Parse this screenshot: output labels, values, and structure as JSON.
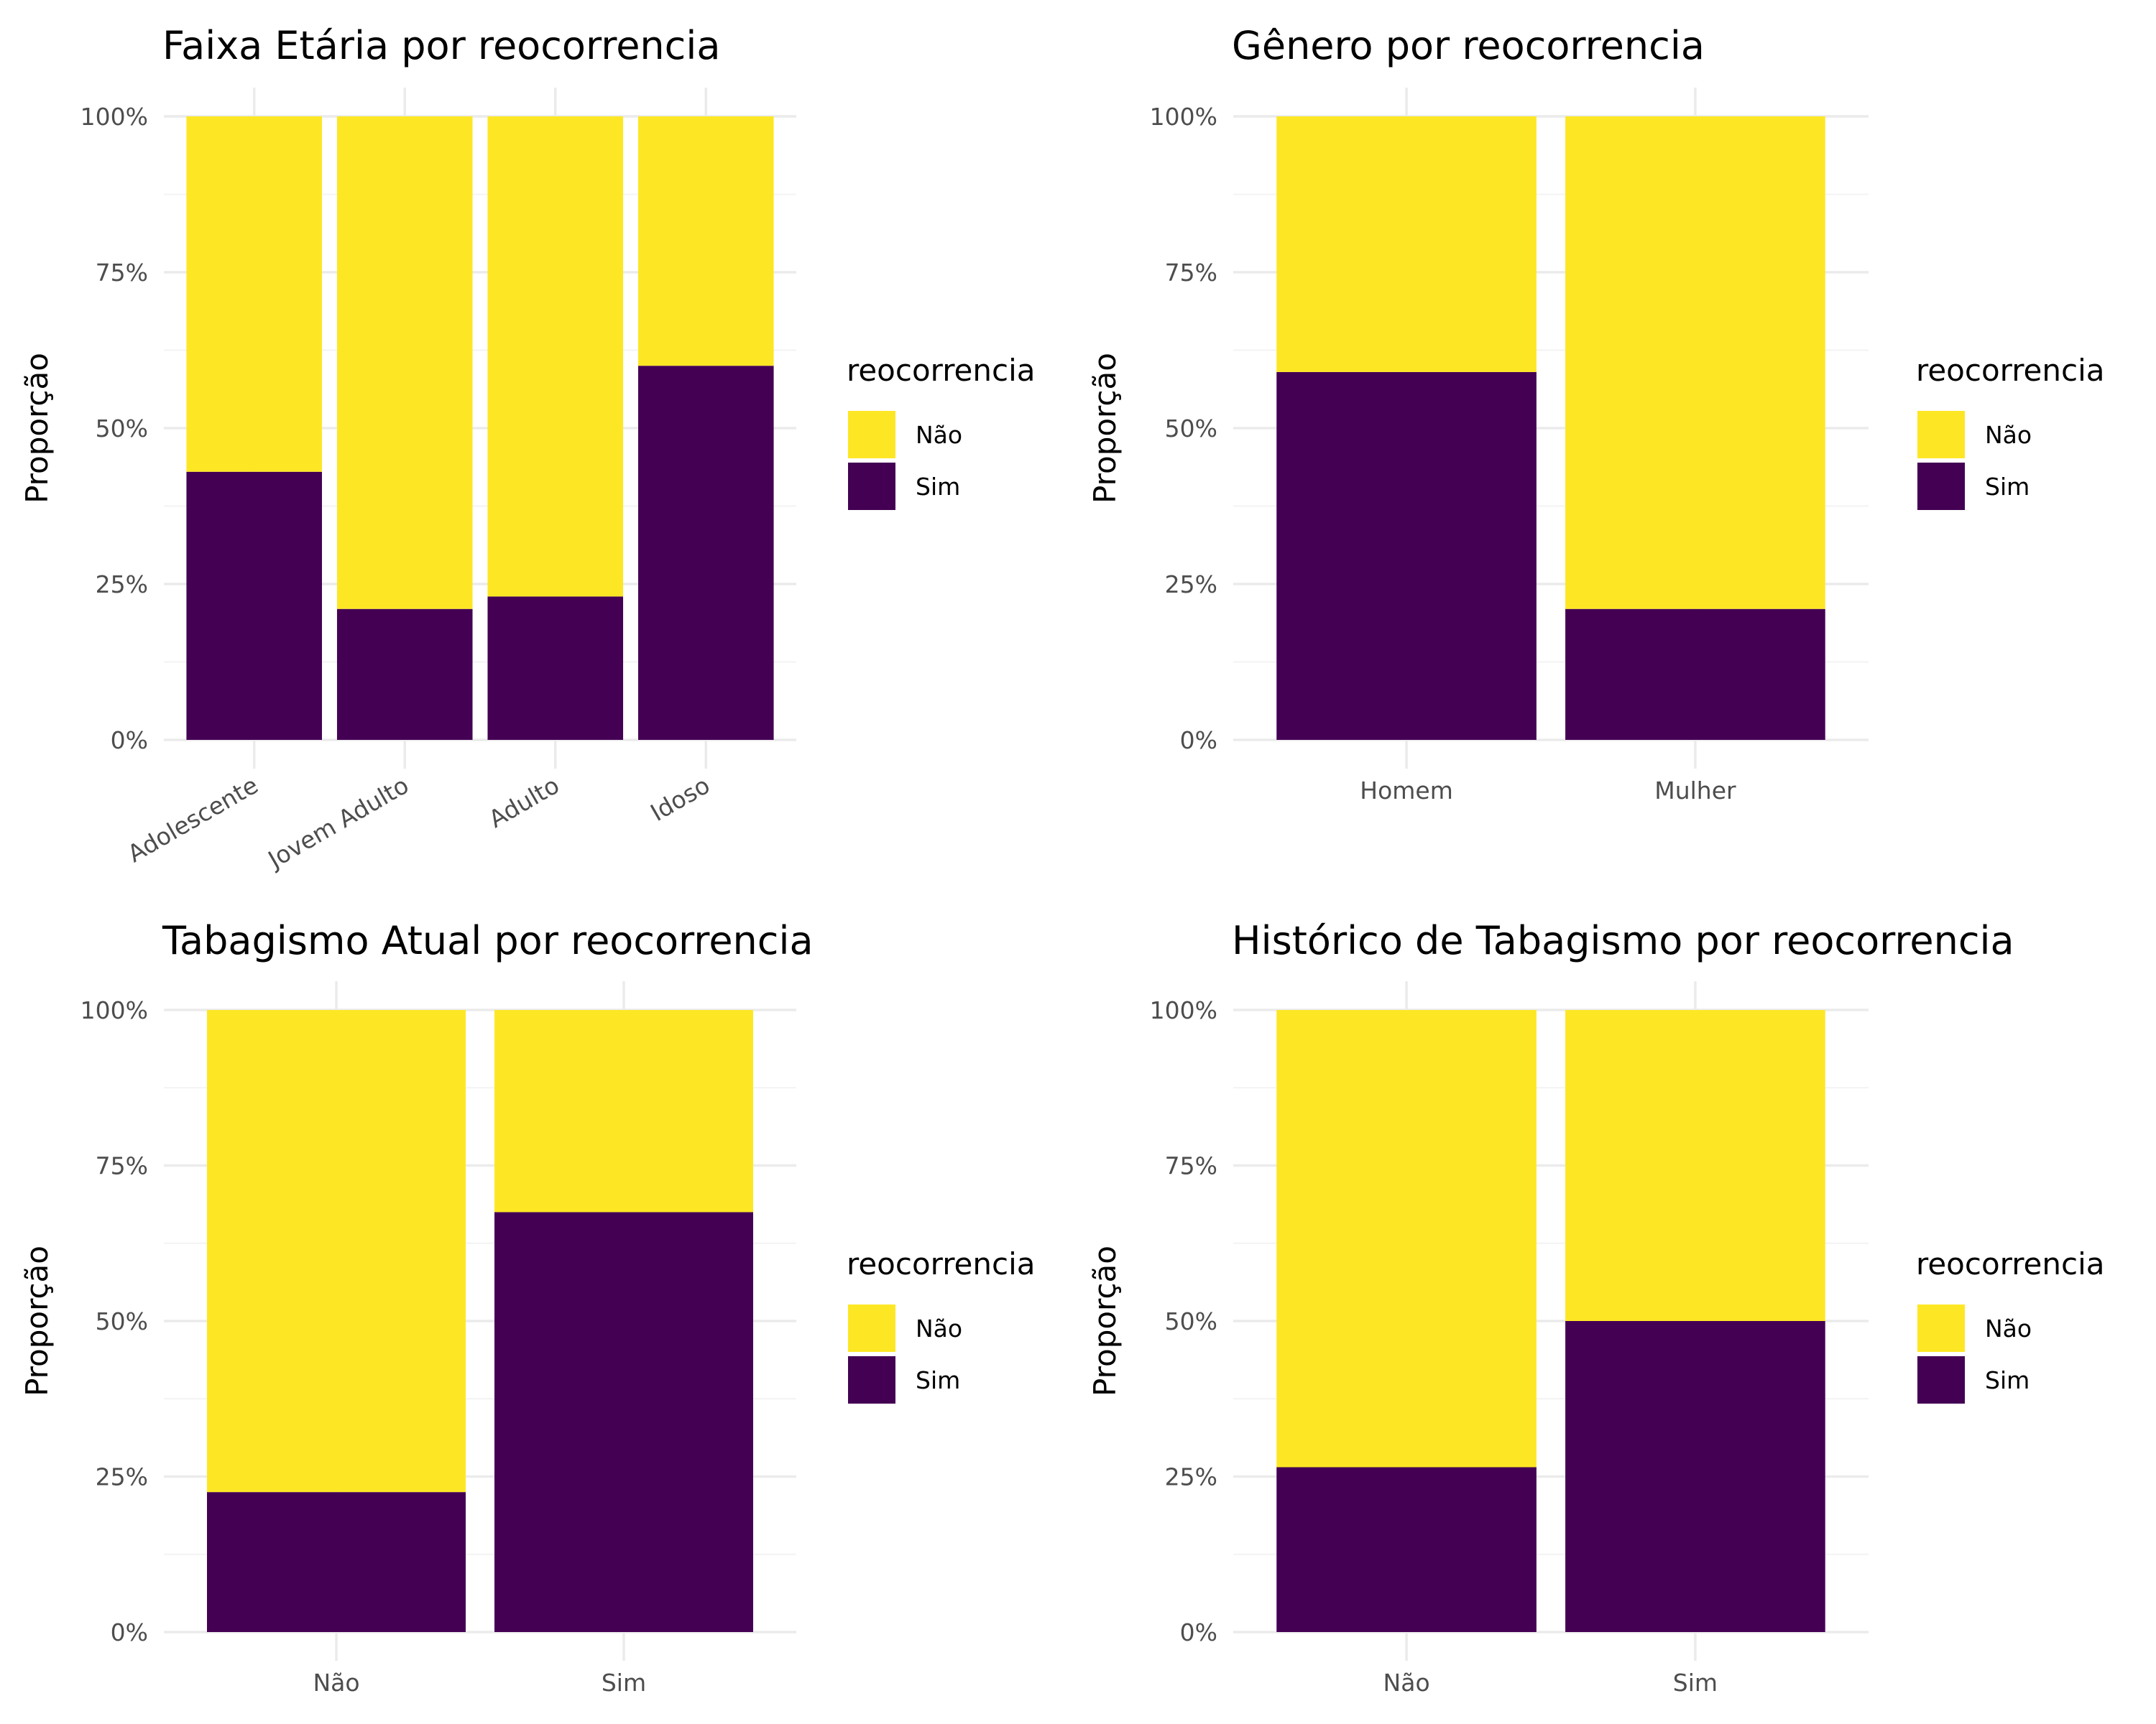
{
  "legend": {
    "title": "reocorrencia",
    "items": [
      {
        "label": "Não",
        "color": "#FDE725"
      },
      {
        "label": "Sim",
        "color": "#440154"
      }
    ]
  },
  "y_axis": {
    "label": "Proporção",
    "ticks": [
      "0%",
      "25%",
      "50%",
      "75%",
      "100%"
    ]
  },
  "chart_data": [
    {
      "type": "bar",
      "stacked": "fill",
      "title": "Faixa Etária por reocorrencia",
      "ylabel": "Proporção",
      "ylim": [
        0,
        1
      ],
      "categories": [
        "Adolescente",
        "Jovem Adulto",
        "Adulto",
        "Idoso"
      ],
      "x_tick_rotation": -30,
      "series": [
        {
          "name": "Sim",
          "color": "#440154",
          "values": [
            0.43,
            0.21,
            0.23,
            0.6
          ]
        },
        {
          "name": "Não",
          "color": "#FDE725",
          "values": [
            0.57,
            0.79,
            0.77,
            0.4
          ]
        }
      ]
    },
    {
      "type": "bar",
      "stacked": "fill",
      "title": "Gênero por reocorrencia",
      "ylabel": "Proporção",
      "ylim": [
        0,
        1
      ],
      "categories": [
        "Homem",
        "Mulher"
      ],
      "x_tick_rotation": 0,
      "series": [
        {
          "name": "Sim",
          "color": "#440154",
          "values": [
            0.59,
            0.21
          ]
        },
        {
          "name": "Não",
          "color": "#FDE725",
          "values": [
            0.41,
            0.79
          ]
        }
      ]
    },
    {
      "type": "bar",
      "stacked": "fill",
      "title": "Tabagismo Atual por reocorrencia",
      "ylabel": "Proporção",
      "ylim": [
        0,
        1
      ],
      "categories": [
        "Não",
        "Sim"
      ],
      "x_tick_rotation": 0,
      "series": [
        {
          "name": "Sim",
          "color": "#440154",
          "values": [
            0.225,
            0.675
          ]
        },
        {
          "name": "Não",
          "color": "#FDE725",
          "values": [
            0.775,
            0.325
          ]
        }
      ]
    },
    {
      "type": "bar",
      "stacked": "fill",
      "title": "Histórico de Tabagismo por reocorrencia",
      "ylabel": "Proporção",
      "ylim": [
        0,
        1
      ],
      "categories": [
        "Não",
        "Sim"
      ],
      "x_tick_rotation": 0,
      "series": [
        {
          "name": "Sim",
          "color": "#440154",
          "values": [
            0.265,
            0.5
          ]
        },
        {
          "name": "Não",
          "color": "#FDE725",
          "values": [
            0.735,
            0.5
          ]
        }
      ]
    }
  ]
}
